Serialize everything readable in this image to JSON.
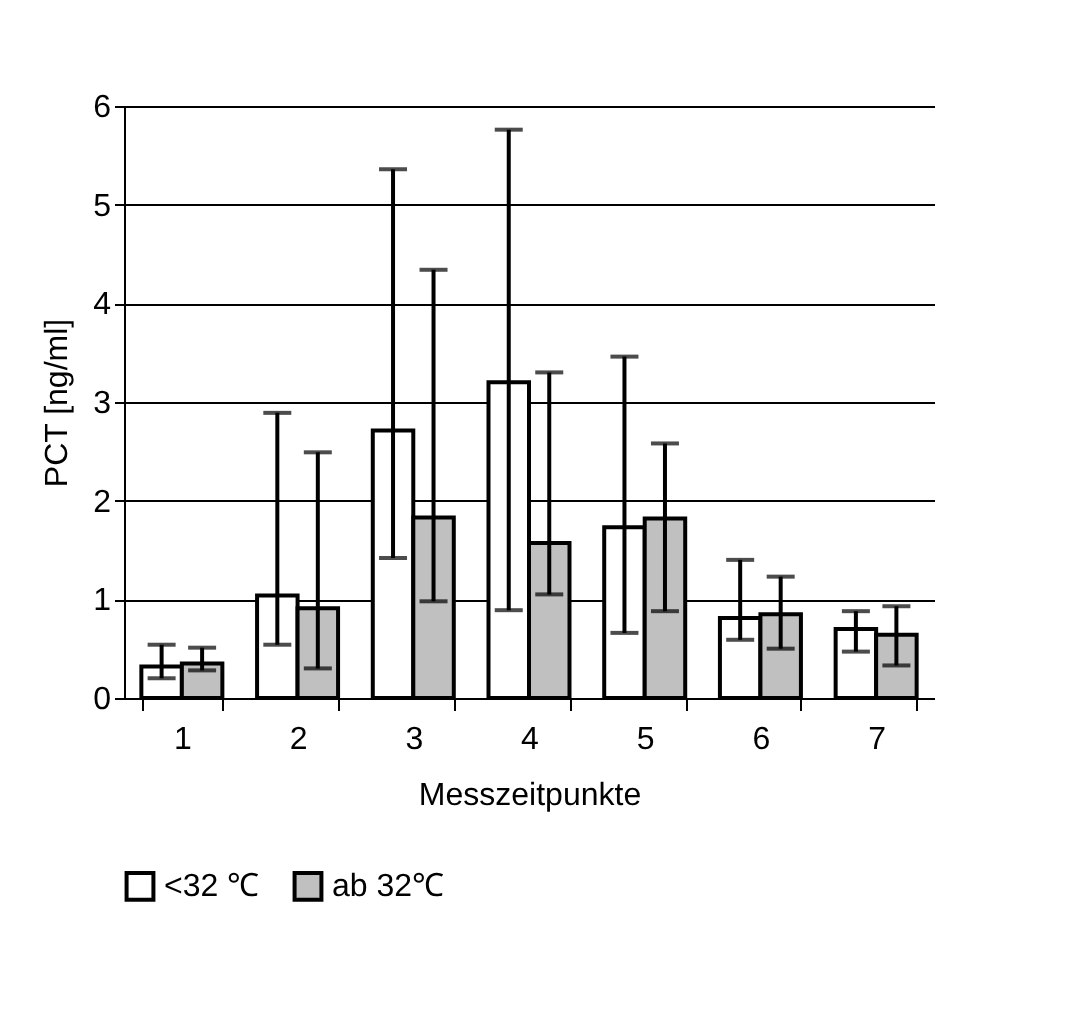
{
  "chart_data": {
    "type": "bar",
    "xlabel": "Messzeitpunkte",
    "ylabel": "PCT [ng/ml]",
    "categories": [
      "1",
      "2",
      "3",
      "4",
      "5",
      "6",
      "7"
    ],
    "series": [
      {
        "name": "<32  ℃",
        "color": "#ffffff",
        "values": [
          0.32,
          1.04,
          2.71,
          3.2,
          1.73,
          0.81,
          0.7
        ],
        "errors": [
          [
            0.2,
            0.54
          ],
          [
            0.54,
            2.89
          ],
          [
            1.42,
            5.36
          ],
          [
            0.89,
            5.76
          ],
          [
            0.66,
            3.46
          ],
          [
            0.59,
            1.4
          ],
          [
            0.47,
            0.88
          ]
        ]
      },
      {
        "name": "ab 32℃",
        "color": "#c0c0c0",
        "values": [
          0.35,
          0.91,
          1.83,
          1.57,
          1.82,
          0.85,
          0.64
        ],
        "errors": [
          [
            0.28,
            0.51
          ],
          [
            0.3,
            2.49
          ],
          [
            0.98,
            4.34
          ],
          [
            1.05,
            3.3
          ],
          [
            0.88,
            2.58
          ],
          [
            0.5,
            1.23
          ],
          [
            0.33,
            0.93
          ]
        ]
      }
    ],
    "ylim": [
      0,
      6
    ],
    "yticks": [
      0,
      1,
      2,
      3,
      4,
      5,
      6
    ],
    "grid": "y",
    "legend": "bottom"
  }
}
